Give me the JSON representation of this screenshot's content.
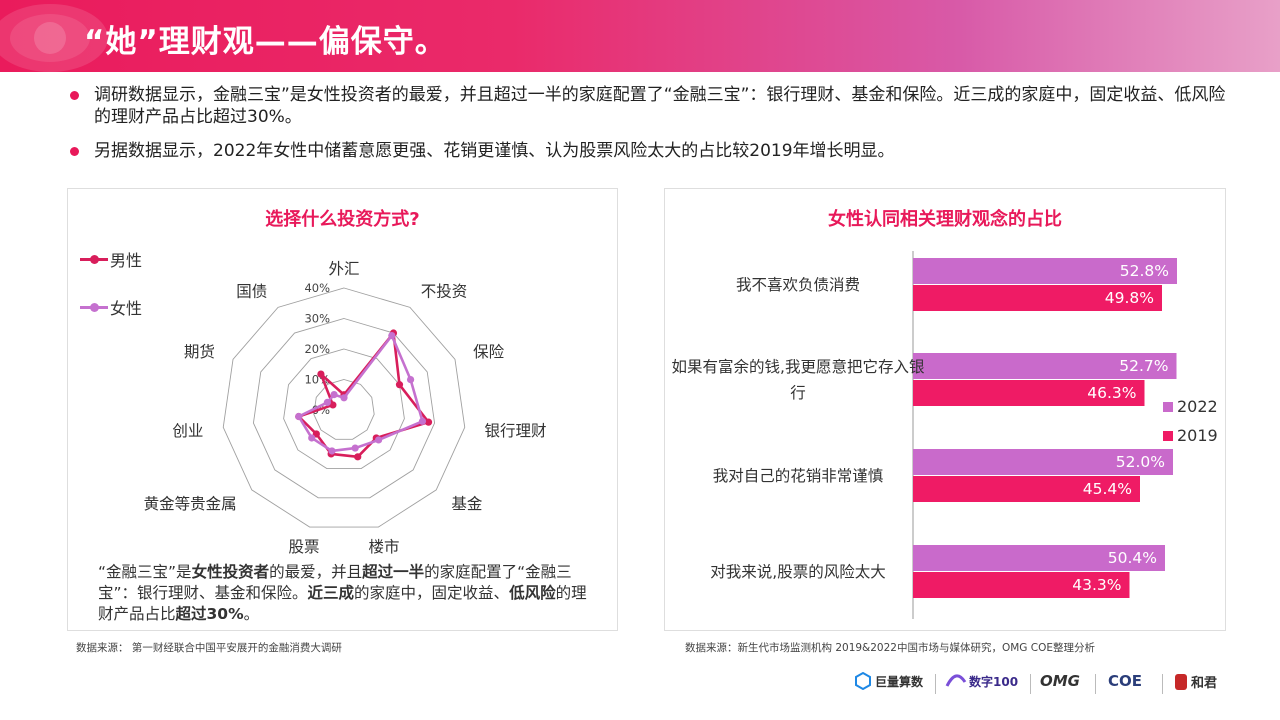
{
  "header": {
    "title": "“她”理财观——偏保守。"
  },
  "bullets": [
    "调研数据显示，金融三宝”是女性投资者的最爱，并且超过一半的家庭配置了“金融三宝”：银行理财、基金和保险。近三成的家庭中，固定收益、低风险的理财产品占比超过30%。",
    "另据数据显示，2022年女性中储蓄意愿更强、花销更谨慎、认为股票风险太大的占比较2019年增长明显。"
  ],
  "left_panel": {
    "note_parts": [
      {
        "t": "“金融三宝”是",
        "b": false
      },
      {
        "t": "女性投资者",
        "b": true
      },
      {
        "t": "的最爱，并且",
        "b": false
      },
      {
        "t": "超过一半",
        "b": true
      },
      {
        "t": "的家庭配置了“金融三宝”：银行理财、基金和保险。",
        "b": false
      },
      {
        "t": "近三成",
        "b": true
      },
      {
        "t": "的家庭中，固定收益、",
        "b": false
      },
      {
        "t": "低风险",
        "b": true
      },
      {
        "t": "的理财产品占比",
        "b": false
      },
      {
        "t": "超过30%",
        "b": true
      },
      {
        "t": "。",
        "b": false
      }
    ],
    "source": "数据来源： 第一财经联合中国平安展开的金融消费大调研"
  },
  "right_panel": {
    "source": "数据来源：新生代市场监测机构 2019&2022中国市场与媒体研究，OMG COE整理分析"
  },
  "colors": {
    "accent": "#e8195a",
    "male": "#d81e5b",
    "female": "#c571cf",
    "bar_2022": "#c96acb",
    "bar_2019": "#ef1b65"
  },
  "logos": {
    "items": [
      "巨量算数",
      "数字100",
      "OMG",
      "COE",
      "和君"
    ]
  },
  "chart_data": [
    {
      "type": "radar",
      "title": "选择什么投资方式?",
      "categories": [
        "外汇",
        "不投资",
        "保险",
        "银行理财",
        "基金",
        "楼市",
        "股票",
        "黄金等贵金属",
        "创业",
        "期货",
        "国债"
      ],
      "tick_labels": [
        "0%",
        "10%",
        "20%",
        "30%",
        "40%"
      ],
      "rlim": [
        0,
        40
      ],
      "series": [
        {
          "name": "男性",
          "values": [
            5,
            30,
            20,
            28,
            14,
            16,
            15,
            12,
            15,
            4,
            14
          ]
        },
        {
          "name": "女性",
          "values": [
            4,
            29,
            24,
            26,
            15,
            13,
            14,
            14,
            15,
            6,
            6
          ]
        }
      ]
    },
    {
      "type": "bar",
      "orientation": "horizontal",
      "title": "女性认同相关理财观念的占比",
      "categories": [
        "我不喜欢负债消费",
        "如果有富余的钱,我更愿意把它存入银行",
        "我对自己的花销非常谨慎",
        "对我来说,股票的风险太大"
      ],
      "series": [
        {
          "name": "2022",
          "values": [
            52.8,
            52.7,
            52.0,
            50.4
          ]
        },
        {
          "name": "2019",
          "values": [
            49.8,
            46.3,
            45.4,
            43.3
          ]
        }
      ],
      "value_labels": {
        "2022": [
          "52.8%",
          "52.7%",
          "52.0%",
          "50.4%"
        ],
        "2019": [
          "49.8%",
          "46.3%",
          "45.4%",
          "43.3%"
        ]
      },
      "xlim": [
        0,
        60
      ],
      "legend": "right"
    }
  ]
}
